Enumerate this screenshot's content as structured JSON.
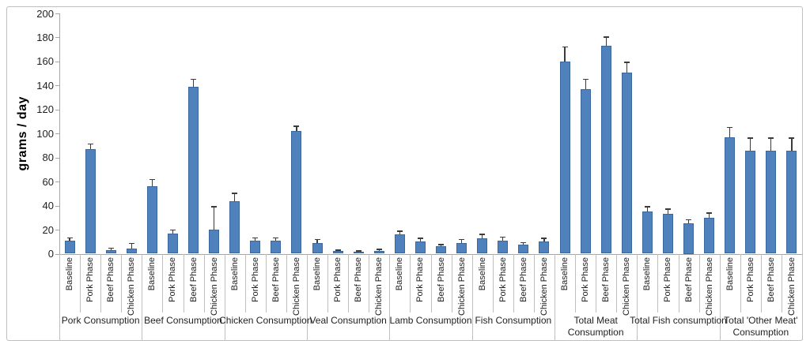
{
  "chart_data": {
    "type": "bar",
    "title": "",
    "xlabel": "",
    "ylabel": "grams / day",
    "ylim": [
      0,
      200
    ],
    "ytick_step": 20,
    "grid": false,
    "legend": "none",
    "error_bars": "upper only",
    "phases": [
      "Baseline",
      "Pork Phase",
      "Beef Phase",
      "Chicken Phase"
    ],
    "groups": [
      {
        "label": "Pork Consumption",
        "values": [
          11,
          87,
          3,
          4
        ],
        "errors": [
          2,
          4,
          1.5,
          4.5
        ]
      },
      {
        "label": "Beef Consumption",
        "values": [
          56,
          17,
          139,
          20
        ],
        "errors": [
          5.5,
          2.5,
          6,
          19
        ]
      },
      {
        "label": "Chicken Consumption",
        "values": [
          44,
          11,
          11,
          102
        ],
        "errors": [
          6,
          2,
          2,
          4
        ]
      },
      {
        "label": "Veal Consumption",
        "values": [
          9,
          2,
          1.5,
          2.5
        ],
        "errors": [
          2.5,
          0.7,
          0.5,
          0.8
        ]
      },
      {
        "label": "Lamb Consumption",
        "values": [
          16,
          10,
          6,
          9
        ],
        "errors": [
          2.5,
          2.5,
          1.5,
          2.5
        ]
      },
      {
        "label": "Fish Consumption",
        "values": [
          13,
          11,
          7.5,
          10
        ],
        "errors": [
          3,
          2.5,
          1.5,
          2.5
        ]
      },
      {
        "label": "Total Meat Consumption",
        "values": [
          160,
          137,
          173,
          151
        ],
        "errors": [
          12,
          8,
          7,
          8
        ]
      },
      {
        "label": "Total Fish consumption",
        "values": [
          35,
          33,
          25,
          30
        ],
        "errors": [
          4,
          4,
          3,
          3.5
        ]
      },
      {
        "label": "Total 'Other Meat' Consumption",
        "values": [
          97,
          86,
          86,
          86
        ],
        "errors": [
          8,
          10,
          10,
          10
        ]
      }
    ],
    "colors": {
      "bar_fill": "#4f81bd",
      "bar_border": "#3a679c",
      "error_bar": "#3b3b3b",
      "axis": "#a6a6a6",
      "separator": "#bfbfbf",
      "outer_border": "#bfbfbf",
      "text": "#1f1f1f"
    }
  }
}
